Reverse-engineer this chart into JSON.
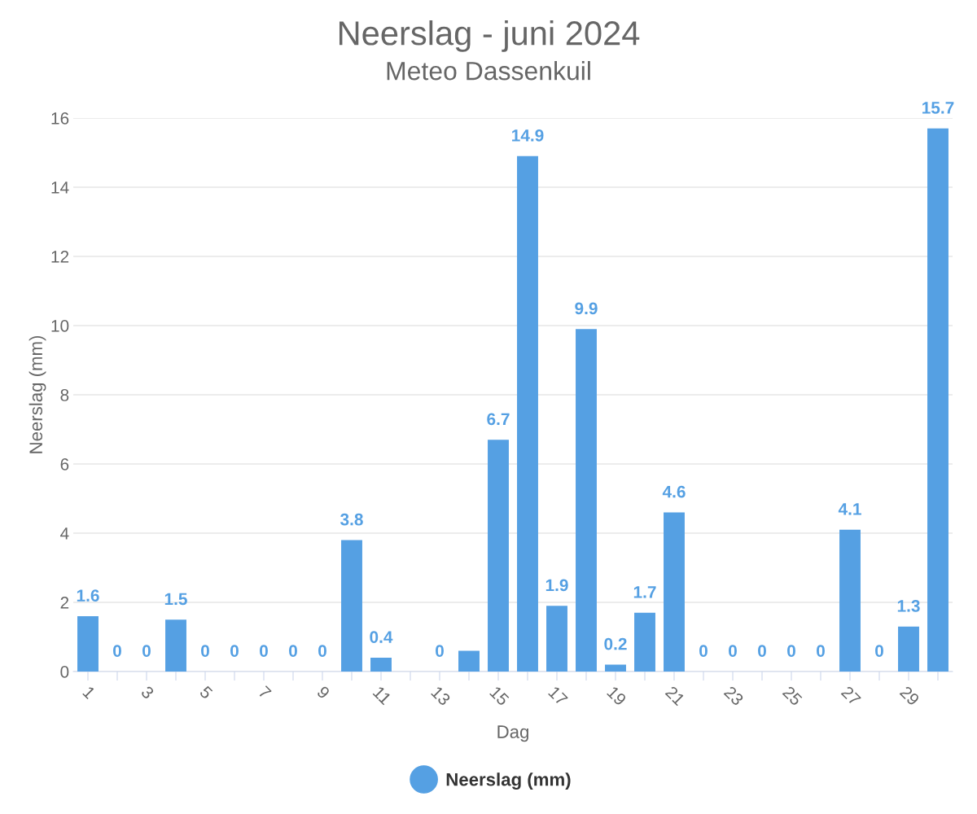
{
  "chart_data": {
    "type": "bar",
    "title": "Neerslag - juni 2024",
    "subtitle": "Meteo Dassenkuil",
    "xlabel": "Dag",
    "ylabel": "Neerslag (mm)",
    "categories": [
      "1",
      null,
      "3",
      null,
      "5",
      null,
      "7",
      null,
      "9",
      null,
      "11",
      null,
      "13",
      null,
      "15",
      null,
      "17",
      null,
      "19",
      null,
      "21",
      null,
      "23",
      null,
      "25",
      null,
      "27",
      null,
      "29",
      null
    ],
    "series": [
      {
        "name": "Neerslag (mm)",
        "color": "#55a0e3",
        "values": [
          1.6,
          0,
          0,
          1.5,
          0,
          0,
          0,
          0,
          0,
          3.8,
          0.4,
          0,
          0,
          0.6,
          6.7,
          14.9,
          1.9,
          9.9,
          0.2,
          1.7,
          4.6,
          0,
          0,
          0,
          0,
          0,
          4.1,
          0,
          1.3,
          15.7
        ],
        "value_labels": [
          "1.6",
          "0",
          "0",
          "1.5",
          "0",
          "0",
          "0",
          "0",
          "0",
          "3.8",
          "0.4",
          null,
          "0",
          null,
          "6.7",
          "14.9",
          "1.9",
          "9.9",
          "0.2",
          "1.7",
          "4.6",
          "0",
          "0",
          "0",
          "0",
          "0",
          "4.1",
          "0",
          "1.3",
          "15.7"
        ]
      }
    ],
    "ylim": [
      0,
      16
    ],
    "yticks": [
      0,
      2,
      4,
      6,
      8,
      10,
      12,
      14,
      16
    ],
    "grid": "y",
    "legend": "bottom"
  }
}
